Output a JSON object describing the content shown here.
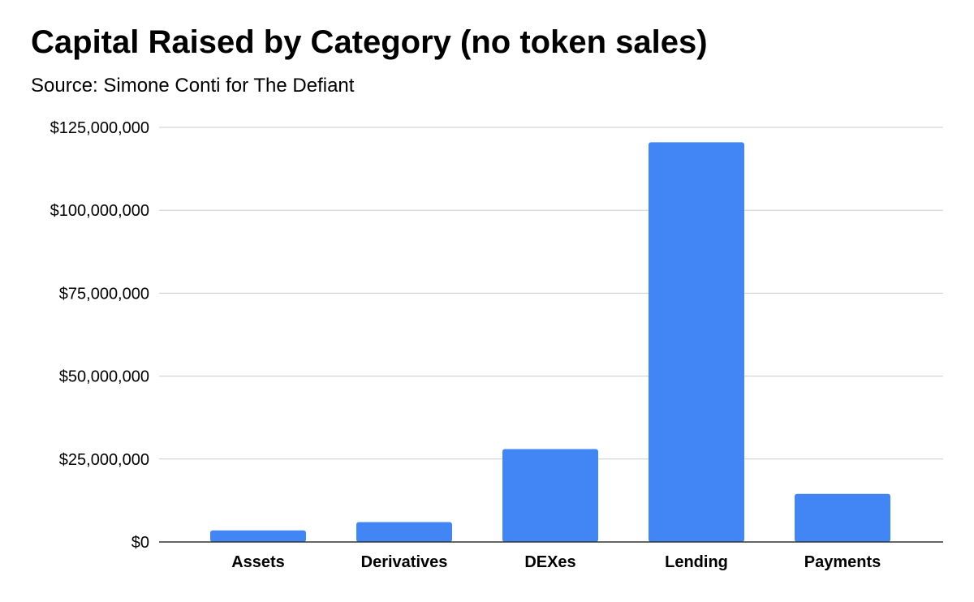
{
  "chart_data": {
    "type": "bar",
    "title": "Capital Raised by Category (no token sales)",
    "subtitle": "Source: Simone Conti for The Defiant",
    "xlabel": "",
    "ylabel": "",
    "categories": [
      "Assets",
      "Derivatives",
      "DEXes",
      "Lending",
      "Payments"
    ],
    "values": [
      3500000,
      6000000,
      28000000,
      120500000,
      14500000
    ],
    "ylim": [
      0,
      125000000
    ],
    "yticks": [
      0,
      25000000,
      50000000,
      75000000,
      100000000,
      125000000
    ],
    "ytick_labels": [
      "$0",
      "$25,000,000",
      "$50,000,000",
      "$75,000,000",
      "$100,000,000",
      "$125,000,000"
    ],
    "bar_color": "#4285f4",
    "grid": true,
    "legend": "none"
  }
}
